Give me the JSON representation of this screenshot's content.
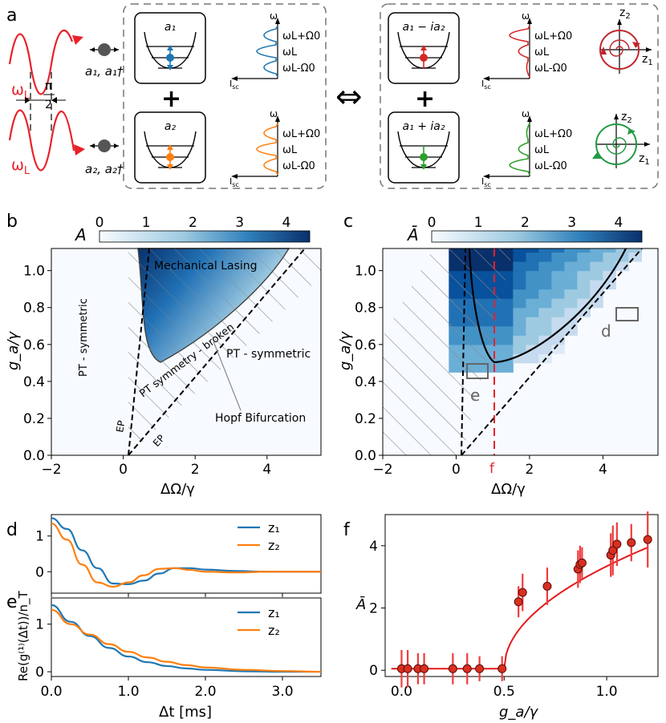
{
  "panel_labels": {
    "a": "a",
    "b": "b",
    "c": "c",
    "d": "d",
    "e": "e",
    "f": "f"
  },
  "panel_a": {
    "omega_L": "ω",
    "omega_L_sub": "L",
    "phase_num": "π",
    "phase_den": "2",
    "mode1_ops": "a₁, a₁†",
    "mode2_ops": "a₂, a₂†",
    "well_labels": [
      "a₁",
      "a₂",
      "a₁ − ia₂",
      "a₁ + ia₂"
    ],
    "spectrum_axis_y": "ω",
    "spectrum_axis_x": "I",
    "spectrum_axis_x_sub": "sc",
    "spectrum_lines": [
      "ω",
      "+Ω",
      "ω",
      "ω",
      "-Ω"
    ],
    "line_upper": "ωL+Ω0",
    "line_mid": "ωL",
    "line_lower": "ωL-Ω0",
    "plus": "+",
    "equiv": "⇔",
    "z1": "z",
    "z2": "z",
    "colors": {
      "blue": "#1f77b4",
      "orange": "#ff7f0e",
      "red": "#d62728",
      "green": "#2ca02c",
      "laser": "#e8212a"
    }
  },
  "chart_data": [
    {
      "panel": "b",
      "type": "heatmap",
      "xlabel": "ΔΩ/γ",
      "ylabel": "g_a/γ",
      "xlim": [
        -2,
        5.5
      ],
      "ylim": [
        0,
        1.12
      ],
      "xticks": [
        "−2",
        "0",
        "2",
        "4"
      ],
      "yticks": [
        "0.0",
        "0.2",
        "0.4",
        "0.6",
        "0.8",
        "1.0"
      ],
      "colorbar": {
        "label": "A",
        "ticks": [
          "0",
          "1",
          "2",
          "3",
          "4"
        ],
        "range": [
          0,
          4.5
        ]
      },
      "annotations": [
        "Mechanical Lasing",
        "PT - symmetric",
        "PT - symmetric",
        "PT symmetry - broken",
        "Hopf Bifurcation",
        "EP",
        "EP"
      ]
    },
    {
      "panel": "c",
      "type": "heatmap",
      "xlabel": "ΔΩ/γ",
      "ylabel": "g_a/γ",
      "xlim": [
        -2,
        5.5
      ],
      "ylim": [
        0,
        1.12
      ],
      "xticks": [
        "−2",
        "0",
        "2",
        "4"
      ],
      "extra_xtick": "f",
      "yticks": [
        "0.0",
        "0.2",
        "0.4",
        "0.6",
        "0.8",
        "1.0"
      ],
      "colorbar": {
        "label": "Ā",
        "ticks": [
          "0",
          "1",
          "2",
          "3",
          "4"
        ],
        "range": [
          0,
          4.5
        ]
      },
      "markers": [
        "d",
        "e"
      ]
    },
    {
      "panel": "d",
      "type": "line",
      "ylabel": "Re(g⁽¹⁾(Δt))/n_T",
      "yticks": [
        "0",
        "1"
      ],
      "series": [
        {
          "name": "z₁",
          "color": "#1f77b4",
          "x": [
            0,
            0.2,
            0.4,
            0.6,
            0.8,
            1.0,
            1.2,
            1.4,
            1.6,
            1.8,
            2.0,
            2.4,
            2.8,
            3.5
          ],
          "y": [
            1.5,
            1.2,
            0.6,
            0.1,
            -0.33,
            -0.35,
            -0.25,
            -0.05,
            0.1,
            0.1,
            0.06,
            0.02,
            0.0,
            0.0
          ]
        },
        {
          "name": "z₂",
          "color": "#ff7f0e",
          "x": [
            0,
            0.2,
            0.4,
            0.6,
            0.8,
            1.0,
            1.2,
            1.4,
            1.6,
            1.8,
            2.0,
            2.4,
            2.8,
            3.5
          ],
          "y": [
            1.35,
            0.9,
            0.2,
            -0.3,
            -0.42,
            -0.3,
            -0.1,
            0.08,
            0.1,
            0.05,
            0.0,
            -0.02,
            0.0,
            0.0
          ]
        }
      ]
    },
    {
      "panel": "e",
      "type": "line",
      "xlabel": "Δt [ms]",
      "xticks": [
        "0.0",
        "1.0",
        "2.0",
        "3.0"
      ],
      "yticks": [
        "0",
        "1"
      ],
      "series": [
        {
          "name": "z₁",
          "color": "#1f77b4",
          "x": [
            0,
            0.25,
            0.5,
            0.75,
            1.0,
            1.25,
            1.5,
            1.75,
            2.0,
            2.5,
            3.0,
            3.5
          ],
          "y": [
            1.4,
            1.05,
            0.75,
            0.5,
            0.32,
            0.2,
            0.12,
            0.07,
            0.04,
            0.01,
            0.0,
            0.0
          ]
        },
        {
          "name": "z₂",
          "color": "#ff7f0e",
          "x": [
            0,
            0.25,
            0.5,
            0.75,
            1.0,
            1.25,
            1.5,
            1.75,
            2.0,
            2.5,
            3.0,
            3.5
          ],
          "y": [
            1.3,
            1.0,
            0.78,
            0.58,
            0.42,
            0.3,
            0.21,
            0.14,
            0.09,
            0.04,
            0.015,
            0.0
          ]
        }
      ]
    },
    {
      "panel": "f",
      "type": "scatter",
      "xlabel": "g_a/γ",
      "ylabel": "Ā",
      "xlim": [
        -0.08,
        1.25
      ],
      "ylim": [
        -0.2,
        5
      ],
      "xticks": [
        "0.0",
        "0.5",
        "1.0"
      ],
      "yticks": [
        "0",
        "2",
        "4"
      ],
      "points": [
        {
          "x": 0.0,
          "y": 0.05,
          "err": 0.6
        },
        {
          "x": 0.03,
          "y": 0.05,
          "err": 0.6
        },
        {
          "x": 0.08,
          "y": 0.05,
          "err": 0.5
        },
        {
          "x": 0.11,
          "y": 0.05,
          "err": 0.5
        },
        {
          "x": 0.25,
          "y": 0.05,
          "err": 0.5
        },
        {
          "x": 0.32,
          "y": 0.05,
          "err": 0.5
        },
        {
          "x": 0.38,
          "y": 0.05,
          "err": 0.4
        },
        {
          "x": 0.49,
          "y": 0.05,
          "err": 0.4
        },
        {
          "x": 0.57,
          "y": 2.2,
          "err": 0.5
        },
        {
          "x": 0.59,
          "y": 2.5,
          "err": 0.6
        },
        {
          "x": 0.71,
          "y": 2.7,
          "err": 0.6
        },
        {
          "x": 0.86,
          "y": 3.25,
          "err": 0.6
        },
        {
          "x": 0.87,
          "y": 3.4,
          "err": 0.6
        },
        {
          "x": 0.88,
          "y": 3.45,
          "err": 0.5
        },
        {
          "x": 1.02,
          "y": 3.7,
          "err": 0.7
        },
        {
          "x": 1.03,
          "y": 3.85,
          "err": 0.8
        },
        {
          "x": 1.05,
          "y": 4.05,
          "err": 0.7
        },
        {
          "x": 1.12,
          "y": 4.1,
          "err": 0.6
        },
        {
          "x": 1.2,
          "y": 4.2,
          "err": 0.9
        }
      ],
      "fit": {
        "threshold": 0.5,
        "color": "#e41a1c"
      }
    }
  ]
}
